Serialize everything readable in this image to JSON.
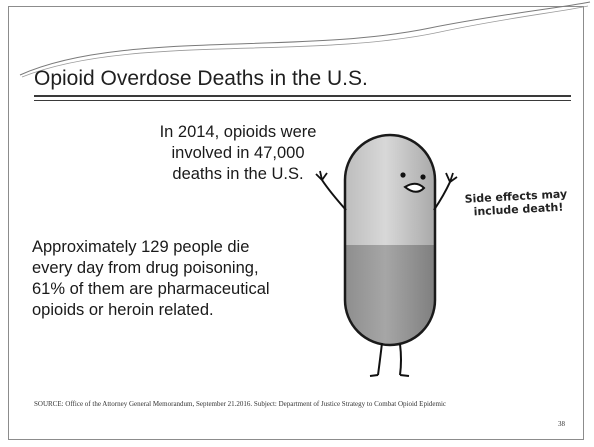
{
  "slide": {
    "title": "Opioid Overdose Deaths in the U.S.",
    "paragraph_1": "In 2014, opioids were involved in 47,000 deaths in the U.S.",
    "paragraph_2": "Approximately 129 people die every day from drug poisoning, 61% of them are pharmaceutical opioids or heroin related.",
    "cartoon_caption": "Side effects may include death!",
    "source": "SOURCE: Office of the Attorney General Memorandum, September 21.2016.  Subject:  Department of Justice Strategy to Combat Opioid Epidemic",
    "page_number": "38"
  }
}
